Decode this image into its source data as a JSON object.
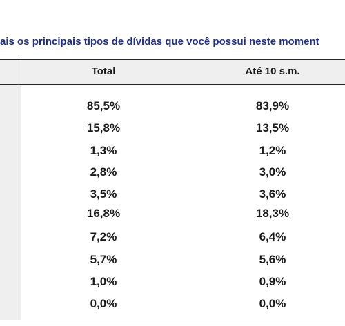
{
  "title": "ais os principais tipos de dívidas que você possui neste moment",
  "table": {
    "columns": [
      "Total",
      "Até 10 s.m."
    ],
    "rows": [
      [
        "85,5%",
        "83,9%"
      ],
      [
        "15,8%",
        "13,5%"
      ],
      [
        "1,3%",
        "1,2%"
      ],
      [
        "2,8%",
        "3,0%"
      ],
      [
        "3,5%",
        "3,6%"
      ],
      [
        "16,8%",
        "18,3%"
      ],
      [
        "7,2%",
        "6,4%"
      ],
      [
        "5,7%",
        "5,6%"
      ],
      [
        "1,0%",
        "0,9%"
      ],
      [
        "0,0%",
        "0,0%"
      ]
    ]
  }
}
